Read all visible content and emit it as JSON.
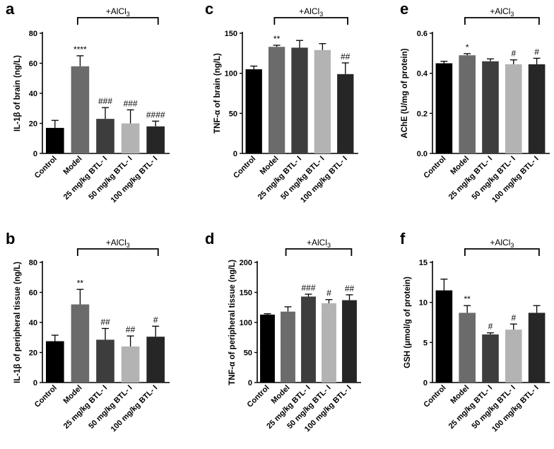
{
  "figure": {
    "categories": [
      "Control",
      "Model",
      "25 mg/kg BTL- I",
      "50 mg/kg BTL- I",
      "100 mg/kg BTL- I"
    ],
    "bar_colors": [
      "#000000",
      "#6b6b6b",
      "#3d3d3d",
      "#b3b3b3",
      "#262626"
    ],
    "bracket_label": "+AlCl",
    "bracket_sub": "3"
  },
  "chart_data": [
    {
      "panel": "a",
      "type": "bar",
      "ylabel": "IL-1β of brain (ng/L)",
      "ylim": [
        0,
        80
      ],
      "yticks": [
        0,
        20,
        40,
        60,
        80
      ],
      "categories": [
        "Control",
        "Model",
        "25 mg/kg BTL- I",
        "50 mg/kg BTL- I",
        "100 mg/kg BTL- I"
      ],
      "values": [
        17,
        58,
        23,
        20,
        18
      ],
      "errors": [
        5,
        7,
        7.5,
        9,
        3.5
      ],
      "significance": [
        "",
        "****",
        "###",
        "###",
        "####"
      ]
    },
    {
      "panel": "c",
      "type": "bar",
      "ylabel": "TNF-α of brain (ng/L)",
      "ylim": [
        0,
        150
      ],
      "yticks": [
        0,
        50,
        100,
        150
      ],
      "categories": [
        "Control",
        "Model",
        "25 mg/kg BTL- I",
        "50 mg/kg BTL- I",
        "100 mg/kg BTL- I"
      ],
      "values": [
        105,
        133,
        132,
        129,
        99
      ],
      "errors": [
        4,
        2,
        9,
        8,
        14
      ],
      "significance": [
        "",
        "**",
        "",
        "",
        "##"
      ]
    },
    {
      "panel": "e",
      "type": "bar",
      "ylabel": "AChE (U/mg of protein)",
      "ylim": [
        0,
        0.6
      ],
      "yticks": [
        0.0,
        0.2,
        0.4,
        0.6
      ],
      "categories": [
        "Control",
        "Model",
        "25 mg/kg BTL- I",
        "50 mg/kg BTL- I",
        "100 mg/kg BTL- I"
      ],
      "values": [
        0.45,
        0.49,
        0.46,
        0.445,
        0.445
      ],
      "errors": [
        0.01,
        0.008,
        0.012,
        0.022,
        0.03
      ],
      "significance": [
        "",
        "*",
        "",
        "#",
        "#"
      ]
    },
    {
      "panel": "b",
      "type": "bar",
      "ylabel": "IL-1β of peripheral tissue (ng/L)",
      "ylim": [
        0,
        80
      ],
      "yticks": [
        0,
        20,
        40,
        60,
        80
      ],
      "categories": [
        "Control",
        "Model",
        "25 mg/kg BTL- I",
        "50 mg/kg BTL- I",
        "100 mg/kg BTL- I"
      ],
      "values": [
        27.5,
        52,
        28.5,
        24,
        30.5
      ],
      "errors": [
        4,
        10,
        7.5,
        7,
        7
      ],
      "significance": [
        "",
        "**",
        "##",
        "##",
        "#"
      ]
    },
    {
      "panel": "d",
      "type": "bar",
      "ylabel": "TNF-α of peripheral tissue (ng/L)",
      "ylim": [
        0,
        200
      ],
      "yticks": [
        0,
        50,
        100,
        150,
        200
      ],
      "categories": [
        "Control",
        "Model",
        "25 mg/kg BTL- I",
        "50 mg/kg BTL- I",
        "100 mg/kg BTL- I"
      ],
      "values": [
        113,
        118,
        143,
        132,
        137
      ],
      "errors": [
        1.5,
        8,
        4,
        6,
        9
      ],
      "significance": [
        "",
        "",
        "###",
        "#",
        "##"
      ]
    },
    {
      "panel": "f",
      "type": "bar",
      "ylabel": "GSH (μmol/g of protein)",
      "ylim": [
        0,
        15
      ],
      "yticks": [
        0,
        5,
        10,
        15
      ],
      "categories": [
        "Control",
        "Model",
        "25 mg/kg BTL- I",
        "50 mg/kg BTL- I",
        "100 mg/kg BTL- I"
      ],
      "values": [
        11.5,
        8.7,
        6.0,
        6.6,
        8.7
      ],
      "errors": [
        1.4,
        0.9,
        0.2,
        0.7,
        0.9
      ],
      "significance": [
        "",
        "**",
        "#",
        "#",
        ""
      ]
    }
  ]
}
